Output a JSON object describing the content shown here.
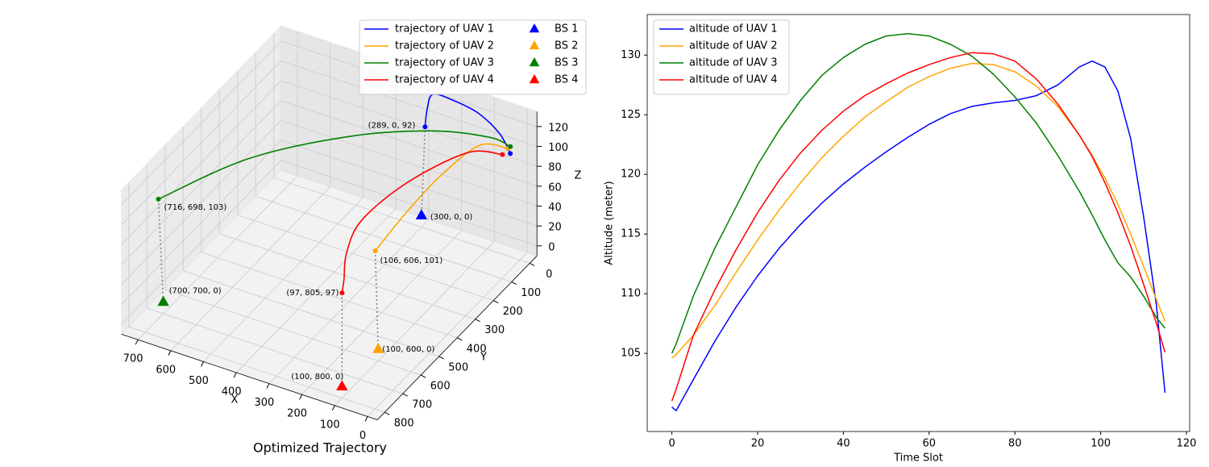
{
  "chart_data": [
    {
      "type": "line3d",
      "title": "Optimized Trajectory",
      "xlabel": "X",
      "ylabel": "Y",
      "zlabel": "Z",
      "xlim": [
        -30,
        750
      ],
      "ylim": [
        -40,
        840
      ],
      "zlim": [
        -10,
        135
      ],
      "xticks": [
        0,
        100,
        200,
        300,
        400,
        500,
        600,
        700
      ],
      "yticks": [
        0,
        100,
        200,
        300,
        400,
        500,
        600,
        700,
        800
      ],
      "zticks": [
        0,
        20,
        40,
        60,
        80,
        100,
        120
      ],
      "grid": true,
      "legend": "upper right",
      "series": [
        {
          "name": "trajectory of UAV 1",
          "color": "#0000ff",
          "label": "(289, 0, 92)",
          "x": [
            289,
            285,
            270,
            200,
            120,
            50,
            11
          ],
          "y": [
            0,
            -5,
            -10,
            0,
            10,
            20,
            33
          ],
          "z": [
            92,
            110,
            125,
            128,
            126,
            115,
            102
          ]
        },
        {
          "name": "trajectory of UAV 2",
          "color": "#ffa500",
          "label": "(106, 606, 101)",
          "x": [
            106,
            90,
            70,
            40,
            15
          ],
          "y": [
            606,
            450,
            300,
            150,
            40
          ],
          "z": [
            101,
            115,
            125,
            129,
            108
          ]
        },
        {
          "name": "trajectory of UAV 3",
          "color": "#008000",
          "label": "(716, 698, 103)",
          "x": [
            716,
            550,
            350,
            180,
            60,
            15
          ],
          "y": [
            698,
            500,
            300,
            150,
            60,
            25
          ],
          "z": [
            103,
            125,
            132,
            128,
            118,
            107
          ]
        },
        {
          "name": "trajectory of UAV 4",
          "color": "#ff0000",
          "label": "(97, 805, 97)",
          "x": [
            97,
            105,
            130,
            150,
            120,
            60,
            20
          ],
          "y": [
            805,
            780,
            720,
            600,
            400,
            180,
            60
          ],
          "z": [
            97,
            105,
            118,
            126,
            130,
            125,
            105
          ]
        }
      ],
      "stations": [
        {
          "name": "BS 1",
          "color": "#0000ff",
          "label": "(300, 0, 0)",
          "x": 300,
          "y": 0,
          "z": 0
        },
        {
          "name": "BS 2",
          "color": "#ffa500",
          "label": "(100, 600, 0)",
          "x": 100,
          "y": 600,
          "z": 0
        },
        {
          "name": "BS 3",
          "color": "#008000",
          "label": "(700, 700, 0)",
          "x": 700,
          "y": 700,
          "z": 0
        },
        {
          "name": "BS 4",
          "color": "#ff0000",
          "label": "(100, 800, 0)",
          "x": 100,
          "y": 800,
          "z": 0
        }
      ]
    },
    {
      "type": "line",
      "xlabel": "Time Slot",
      "ylabel": "Altitude (meter)",
      "xlim": [
        -5.75,
        120.75
      ],
      "ylim": [
        98.45,
        133.4
      ],
      "xticks": [
        0,
        20,
        40,
        60,
        80,
        100,
        120
      ],
      "yticks": [
        105,
        110,
        115,
        120,
        125,
        130
      ],
      "legend": "upper left",
      "x": [
        0,
        1,
        5,
        10,
        15,
        20,
        25,
        30,
        35,
        40,
        45,
        50,
        55,
        60,
        65,
        70,
        75,
        80,
        85,
        90,
        95,
        98,
        101,
        104,
        107,
        110,
        113,
        115
      ],
      "series": [
        {
          "name": "altitude of UAV 1",
          "color": "#0000ff",
          "values": [
            100.5,
            100.2,
            102.8,
            106,
            108.9,
            111.5,
            113.8,
            115.8,
            117.6,
            119.2,
            120.6,
            121.9,
            123.1,
            124.2,
            125.1,
            125.7,
            126,
            126.2,
            126.6,
            127.5,
            129,
            129.5,
            129,
            127,
            123,
            116.5,
            109,
            101.7
          ]
        },
        {
          "name": "altitude of UAV 2",
          "color": "#ffa500",
          "values": [
            104.6,
            104.9,
            106.5,
            109,
            111.8,
            114.5,
            117,
            119.3,
            121.4,
            123.2,
            124.8,
            126.1,
            127.3,
            128.2,
            128.9,
            129.3,
            129.2,
            128.6,
            127.4,
            125.7,
            123.3,
            121.6,
            119.7,
            117.5,
            115,
            112.3,
            109.5,
            107.7
          ]
        },
        {
          "name": "altitude of UAV 3",
          "color": "#008000",
          "values": [
            105,
            105.8,
            109.8,
            113.8,
            117.3,
            120.8,
            123.7,
            126.2,
            128.3,
            129.8,
            130.9,
            131.6,
            131.8,
            131.6,
            130.9,
            129.9,
            128.4,
            126.5,
            124.3,
            121.6,
            118.6,
            116.6,
            114.5,
            112.6,
            111.4,
            109.8,
            108,
            107.1
          ]
        },
        {
          "name": "altitude of UAV 4",
          "color": "#ff0000",
          "values": [
            101,
            102,
            106.5,
            110.3,
            113.7,
            116.8,
            119.5,
            121.8,
            123.7,
            125.3,
            126.6,
            127.6,
            128.5,
            129.2,
            129.8,
            130.2,
            130.1,
            129.5,
            128,
            125.9,
            123.3,
            121.5,
            119.3,
            116.8,
            114,
            110.8,
            107.5,
            105.1
          ]
        }
      ]
    }
  ]
}
